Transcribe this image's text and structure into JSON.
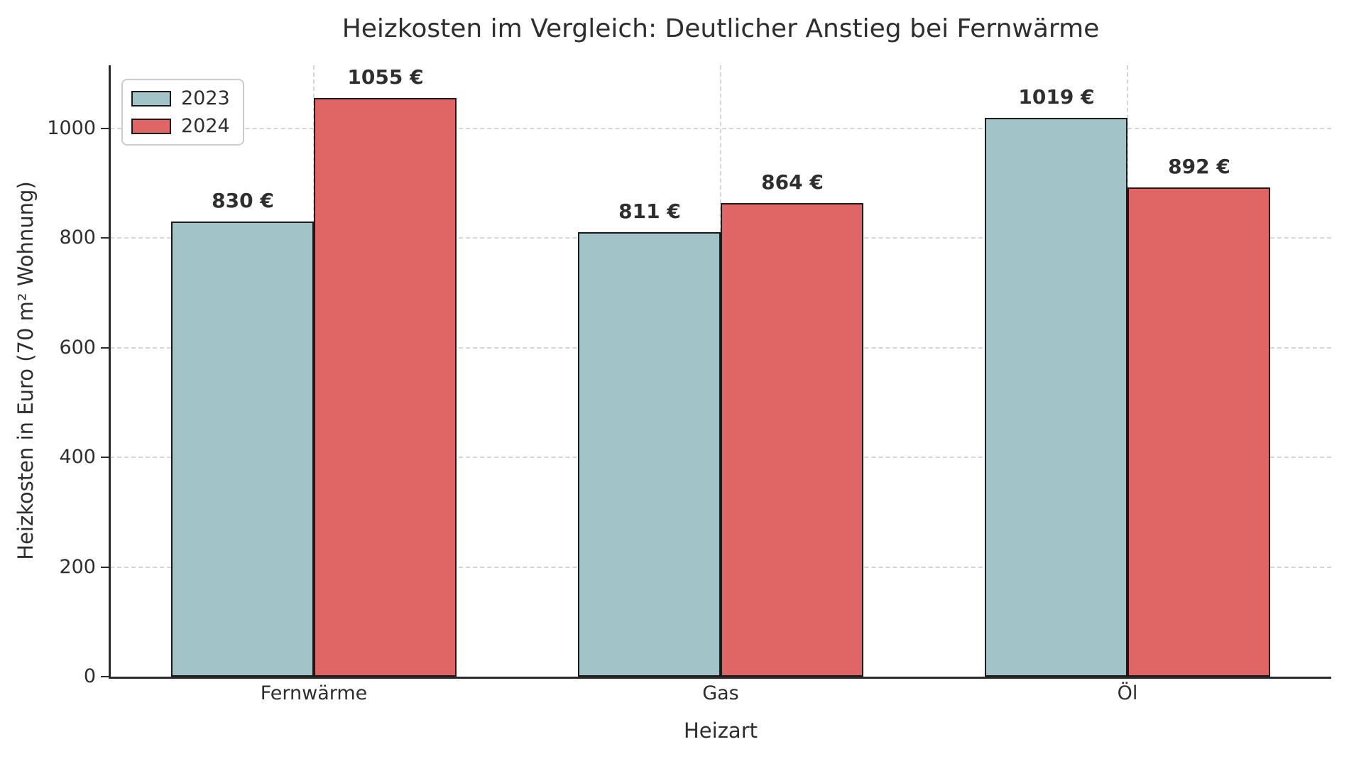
{
  "figure": {
    "title": "Heizkosten im Vergleich: Deutlicher Anstieg bei Fernwärme",
    "xlabel": "Heizart",
    "ylabel": "Heizkosten in Euro (70 m² Wohnung)"
  },
  "legend": {
    "position": "upper left",
    "items": [
      {
        "label": "2023",
        "color": "#a2c4c9"
      },
      {
        "label": "2024",
        "color": "#e06666"
      }
    ]
  },
  "chart_data": {
    "type": "bar",
    "title": "Heizkosten im Vergleich: Deutlicher Anstieg bei Fernwärme",
    "xlabel": "Heizart",
    "ylabel": "Heizkosten in Euro (70 m² Wohnung)",
    "categories": [
      "Fernwärme",
      "Gas",
      "Öl"
    ],
    "series": [
      {
        "name": "2023",
        "color": "#a2c4c9",
        "values": [
          830,
          811,
          1019
        ],
        "value_labels": [
          "830 €",
          "811 €",
          "1019 €"
        ]
      },
      {
        "name": "2024",
        "color": "#e06666",
        "values": [
          1055,
          864,
          892
        ],
        "value_labels": [
          "1055 €",
          "864 €",
          "892 €"
        ]
      }
    ],
    "ylim": [
      0,
      1115
    ],
    "yticks": [
      0,
      200,
      400,
      600,
      800,
      1000
    ],
    "bar_width_fraction": 0.35,
    "bar_edge_color": "#1a1a1a",
    "grid": "dashed, horizontal at yticks and vertical at category centers",
    "grid_color": "#d6d6d6",
    "legend_position": "upper left",
    "text_color": "#2e2e2e"
  }
}
